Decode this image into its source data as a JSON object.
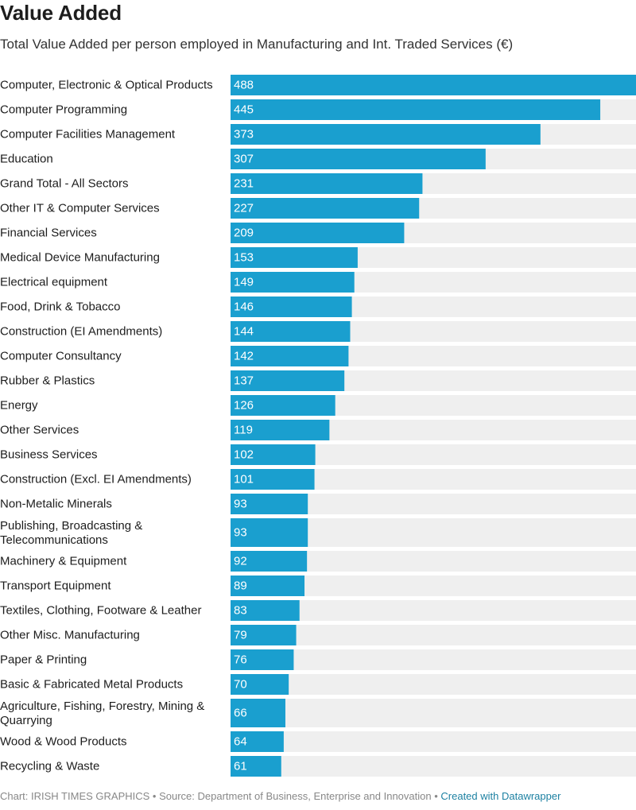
{
  "title": "Value Added",
  "subtitle": "Total Value Added per person employed in Manufacturing and Int. Traded Services (€)",
  "footer": {
    "chart_credit": "Chart: IRISH TIMES GRAPHICS",
    "separator": " • ",
    "source": "Source: Department of Business, Enterprise and Innovation",
    "created_with": "Created with Datawrapper"
  },
  "colors": {
    "bar": "#1a9fcf",
    "track": "#efefef",
    "value_label": "#ffffff",
    "category_label": "#1d1d1d"
  },
  "chart_data": {
    "type": "bar",
    "orientation": "horizontal",
    "title": "Value Added",
    "subtitle": "Total Value Added per person employed in Manufacturing and Int. Traded Services (€)",
    "xlim": [
      0,
      488
    ],
    "categories": [
      "Computer, Electronic & Optical Products",
      "Computer Programming",
      "Computer Facilities Management",
      "Education",
      "Grand Total - All Sectors",
      "Other IT & Computer Services",
      "Financial Services",
      "Medical Device Manufacturing",
      "Electrical equipment",
      "Food, Drink & Tobacco",
      "Construction (EI Amendments)",
      "Computer Consultancy",
      "Rubber & Plastics",
      "Energy",
      "Other Services",
      "Business Services",
      "Construction (Excl. EI Amendments)",
      "Non-Metalic Minerals",
      "Publishing, Broadcasting & Telecommunications",
      "Machinery & Equipment",
      "Transport Equipment",
      "Textiles, Clothing, Footware & Leather",
      "Other Misc. Manufacturing",
      "Paper & Printing",
      "Basic & Fabricated Metal Products",
      "Agriculture, Fishing, Forestry, Mining & Quarrying",
      "Wood & Wood Products",
      "Recycling & Waste"
    ],
    "values": [
      488,
      445,
      373,
      307,
      231,
      227,
      209,
      153,
      149,
      146,
      144,
      142,
      137,
      126,
      119,
      102,
      101,
      93,
      93,
      92,
      89,
      83,
      79,
      76,
      70,
      66,
      64,
      61
    ]
  }
}
